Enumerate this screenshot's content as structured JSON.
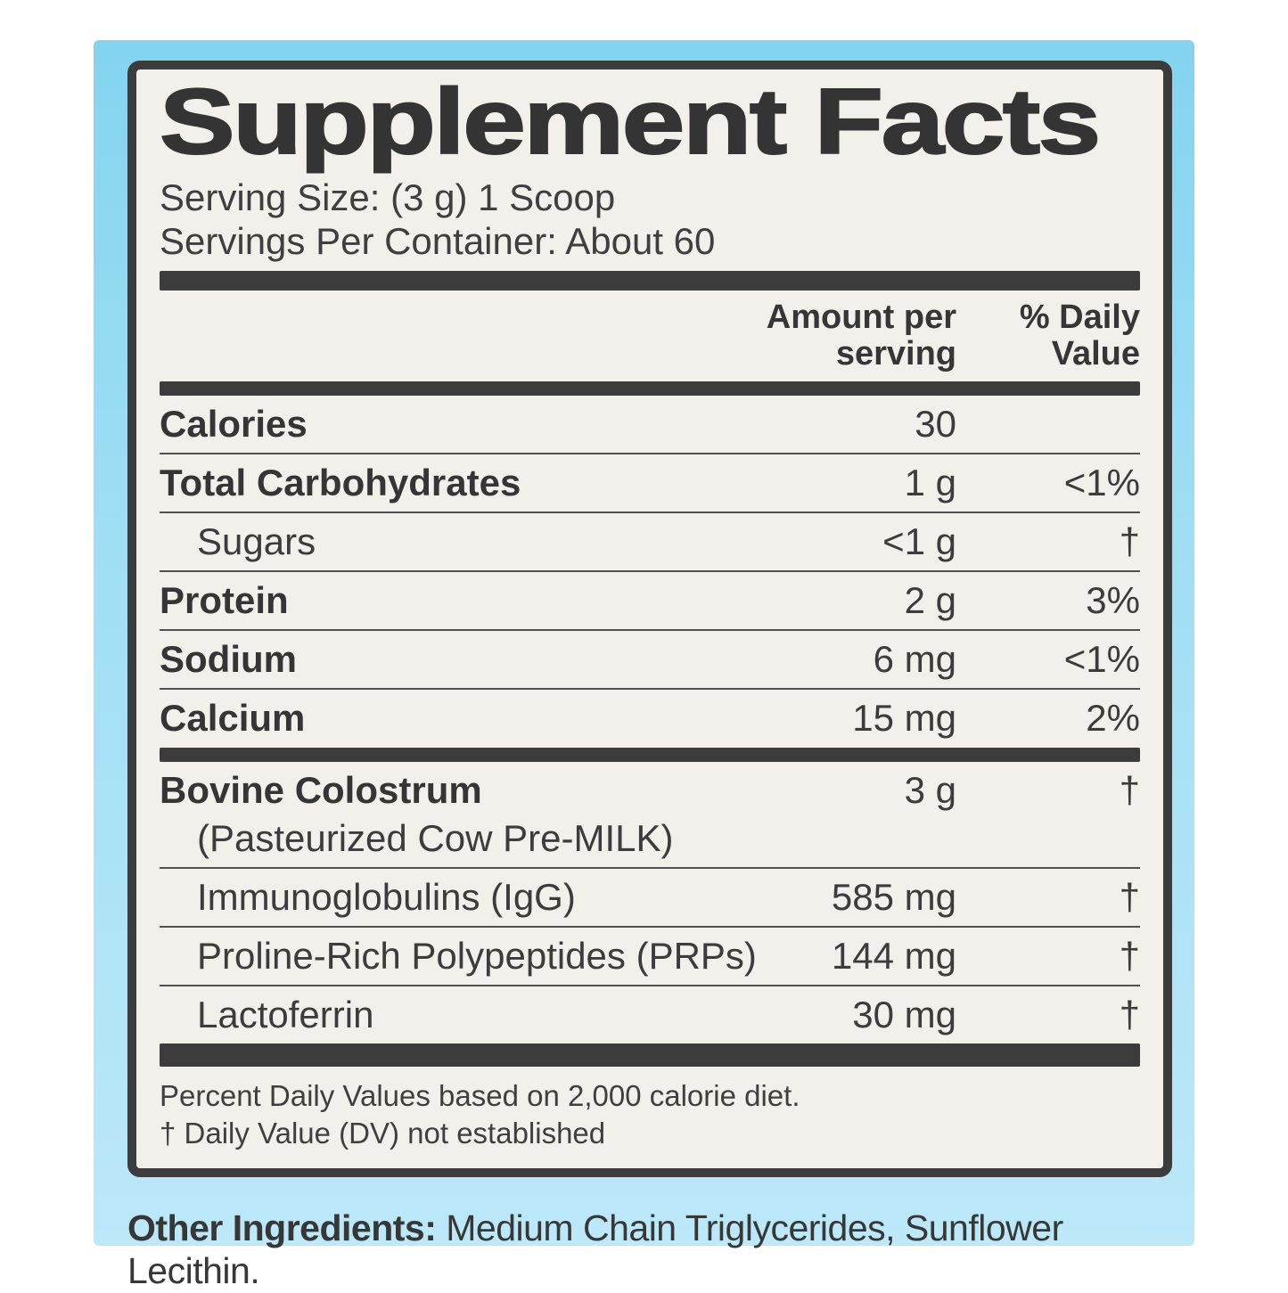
{
  "colors": {
    "panel_top": "#84d4ef",
    "panel_bottom": "#bce8f8",
    "label_bg": "#f1f0ea",
    "ink": "#3c3c3c"
  },
  "label": {
    "title": "Supplement Facts",
    "serving_size": "Serving Size: (3 g) 1 Scoop",
    "servings_per_container": "Servings Per Container: About 60",
    "columns": {
      "amount": "Amount per\nserving",
      "daily_value": "% Daily\nValue"
    },
    "table": [
      {
        "type": "row",
        "name": "Calories",
        "amount": "30",
        "dv": "",
        "bold": true
      },
      {
        "type": "row",
        "name": "Total Carbohydrates",
        "amount": "1 g",
        "dv": "<1%",
        "bold": true
      },
      {
        "type": "row",
        "name": "Sugars",
        "amount": "<1 g",
        "dv": "†",
        "indent": true
      },
      {
        "type": "row",
        "name": "Protein",
        "amount": "2 g",
        "dv": "3%",
        "bold": true
      },
      {
        "type": "row",
        "name": "Sodium",
        "amount": "6 mg",
        "dv": "<1%",
        "bold": true
      },
      {
        "type": "row",
        "name": "Calcium",
        "amount": "15 mg",
        "dv": "2%",
        "bold": true
      },
      {
        "type": "bar",
        "size": "md"
      },
      {
        "type": "row",
        "name": "Bovine Colostrum",
        "sub": "(Pasteurized Cow Pre-MILK)",
        "amount": "3 g",
        "dv": "†",
        "bold": true
      },
      {
        "type": "row",
        "name": "Immunoglobulins (IgG)",
        "amount": "585 mg",
        "dv": "†",
        "indent": true
      },
      {
        "type": "row",
        "name": "Proline-Rich Polypeptides (PRPs)",
        "amount": "144 mg",
        "dv": "†",
        "indent": true
      },
      {
        "type": "row",
        "name": "Lactoferrin",
        "amount": "30 mg",
        "dv": "†",
        "indent": true
      },
      {
        "type": "bar",
        "size": "xl"
      }
    ],
    "footnotes": [
      "Percent Daily Values based on 2,000 calorie diet.",
      "† Daily Value (DV) not established"
    ]
  },
  "other_ingredients": {
    "label": "Other Ingredients:",
    "text": " Medium Chain Triglycerides, Sunflower Lecithin."
  }
}
